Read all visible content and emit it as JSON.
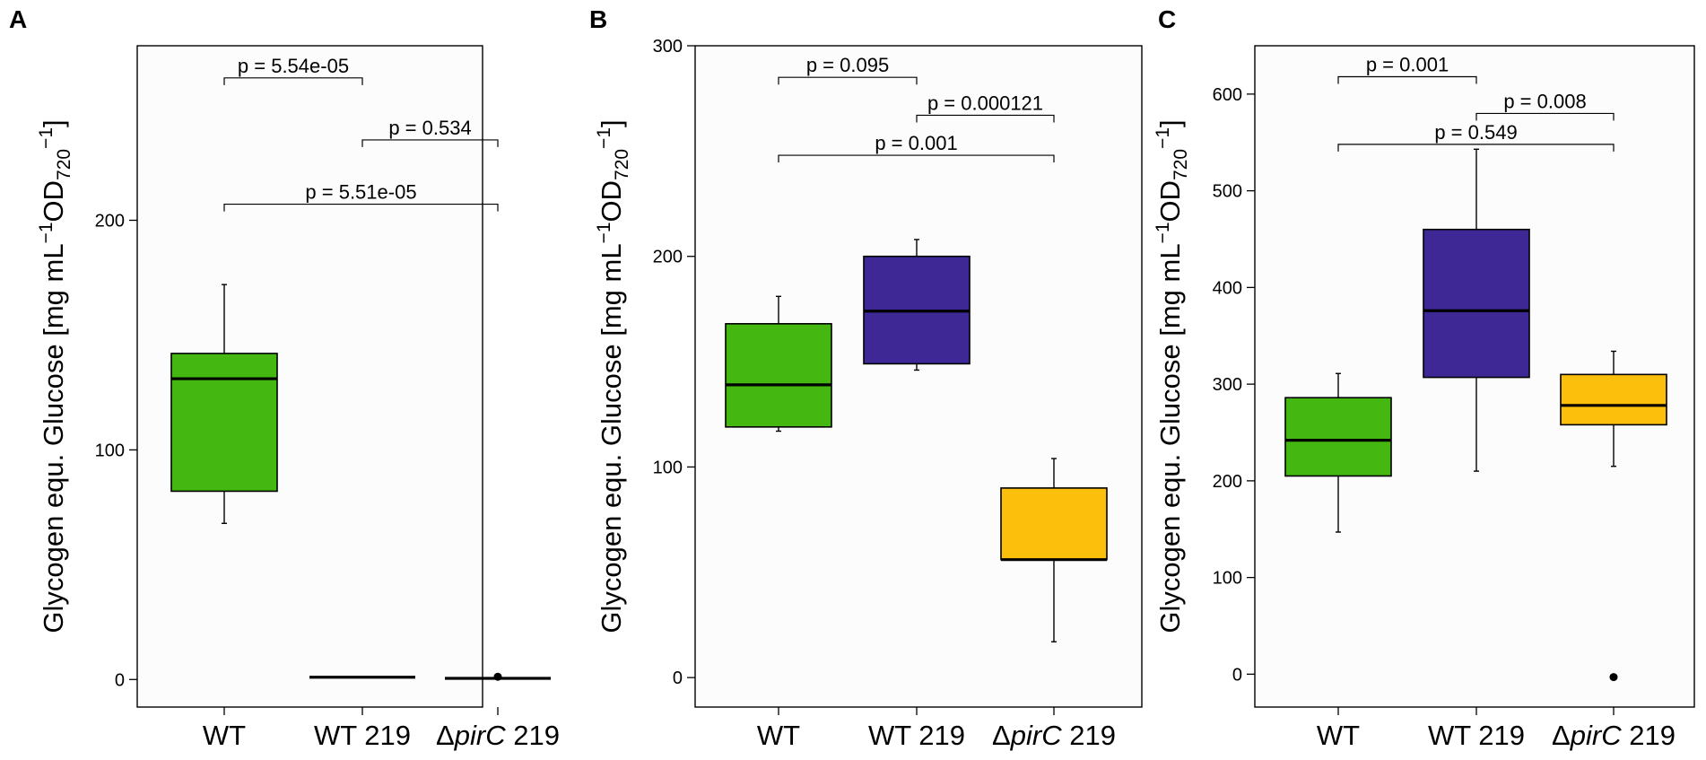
{
  "chart_data": [
    {
      "type": "box",
      "panel": "A",
      "ylabel": "Glycogen equ. Glucose [mg mL⁻¹OD₇₂₀⁻¹]",
      "ylim": [
        -12,
        276
      ],
      "yticks": [
        "0",
        "100",
        "200"
      ],
      "categories": [
        "WT",
        "WT 219",
        "ΔpirC 219"
      ],
      "boxes": [
        {
          "color": "#45b711",
          "whisker_low": 68,
          "q1": 82,
          "median": 131,
          "q3": 142,
          "whisker_high": 172,
          "outliers": []
        },
        {
          "color": "#3d2896",
          "whisker_low": 1,
          "q1": 1,
          "median": 1,
          "q3": 1,
          "whisker_high": 1,
          "outliers": []
        },
        {
          "color": "#fbbf0c",
          "whisker_low": 0.5,
          "q1": 0.5,
          "median": 0.5,
          "q3": 0.5,
          "whisker_high": 0.5,
          "outliers": [
            1.2
          ]
        }
      ],
      "comparisons": [
        {
          "from": 0,
          "to": 1,
          "y": 262,
          "label": "p = 5.54e-05"
        },
        {
          "from": 1,
          "to": 2,
          "y": 235,
          "label": "p = 0.534"
        },
        {
          "from": 0,
          "to": 2,
          "y": 207,
          "label": "p = 5.51e-05"
        }
      ]
    },
    {
      "type": "box",
      "panel": "B",
      "ylabel": "Glycogen equ. Glucose [mg mL⁻¹OD₇₂₀⁻¹]",
      "ylim": [
        -14,
        300
      ],
      "yticks": [
        "0",
        "100",
        "200",
        "300"
      ],
      "categories": [
        "WT",
        "WT 219",
        "ΔpirC 219"
      ],
      "boxes": [
        {
          "color": "#45b711",
          "whisker_low": 117,
          "q1": 119,
          "median": 139,
          "q3": 168,
          "whisker_high": 181,
          "outliers": []
        },
        {
          "color": "#3d2896",
          "whisker_low": 146,
          "q1": 149,
          "median": 174,
          "q3": 200,
          "whisker_high": 208,
          "outliers": []
        },
        {
          "color": "#fbbf0c",
          "whisker_low": 17,
          "q1": 56,
          "median": 56,
          "q3": 90,
          "whisker_high": 104,
          "outliers": []
        }
      ],
      "comparisons": [
        {
          "from": 0,
          "to": 1,
          "y": 285,
          "label": "p = 0.095"
        },
        {
          "from": 1,
          "to": 2,
          "y": 267,
          "label": "p = 0.000121"
        },
        {
          "from": 0,
          "to": 2,
          "y": 248,
          "label": "p = 0.001"
        }
      ]
    },
    {
      "type": "box",
      "panel": "C",
      "ylabel": "Glycogen equ. Glucose [mg mL⁻¹OD₇₂₀⁻¹]",
      "ylim": [
        -34,
        650
      ],
      "yticks": [
        "0",
        "100",
        "200",
        "300",
        "400",
        "500",
        "600"
      ],
      "categories": [
        "WT",
        "WT 219",
        "ΔpirC 219"
      ],
      "boxes": [
        {
          "color": "#45b711",
          "whisker_low": 147,
          "q1": 205,
          "median": 242,
          "q3": 286,
          "whisker_high": 311,
          "outliers": []
        },
        {
          "color": "#3d2896",
          "whisker_low": 210,
          "q1": 307,
          "median": 376,
          "q3": 460,
          "whisker_high": 543,
          "outliers": []
        },
        {
          "color": "#fbbf0c",
          "whisker_low": 215,
          "q1": 258,
          "median": 278,
          "q3": 310,
          "whisker_high": 334,
          "outliers": [
            -3
          ]
        }
      ],
      "comparisons": [
        {
          "from": 0,
          "to": 1,
          "y": 618,
          "label": "p = 0.001"
        },
        {
          "from": 1,
          "to": 2,
          "y": 580,
          "label": "p = 0.008"
        },
        {
          "from": 0,
          "to": 2,
          "y": 548,
          "label": "p = 0.549"
        }
      ]
    }
  ]
}
